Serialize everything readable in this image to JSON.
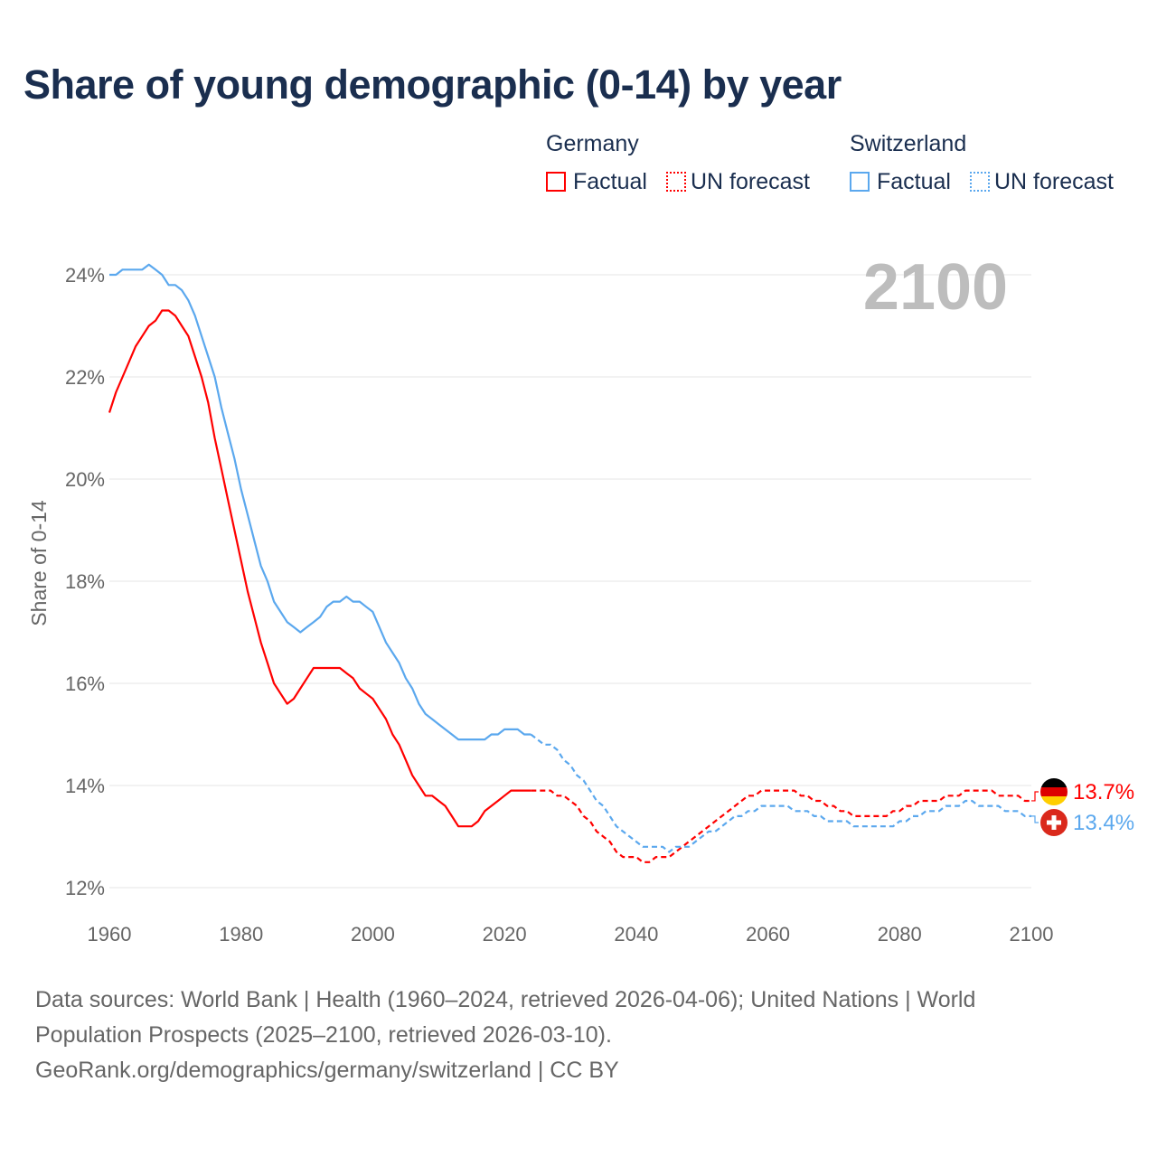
{
  "title": "Share of young demographic (0-14) by year",
  "legend": {
    "groups": [
      {
        "name": "Germany",
        "items": [
          "Factual",
          "UN forecast"
        ],
        "color": "#ff0000"
      },
      {
        "name": "Switzerland",
        "items": [
          "Factual",
          "UN forecast"
        ],
        "color": "#5ba8ee"
      }
    ]
  },
  "footer": {
    "line1": "Data sources: World Bank | Health (1960–2024, retrieved 2026-04-06); United Nations | World Population Prospects (2025–2100, retrieved 2026-03-10).",
    "line2": "GeoRank.org/demographics/germany/switzerland | CC BY"
  },
  "chart_data": {
    "type": "line",
    "title": "Share of young demographic (0-14) by year",
    "year_label": "2100",
    "xlabel": "",
    "ylabel": "Share of 0-14",
    "xlim": [
      1960,
      2100
    ],
    "ylim": [
      12,
      24
    ],
    "x_ticks": [
      "1960",
      "1980",
      "2000",
      "2020",
      "2040",
      "2060",
      "2080",
      "2100"
    ],
    "y_ticks": [
      "12%",
      "14%",
      "16%",
      "18%",
      "20%",
      "22%",
      "24%"
    ],
    "grid": true,
    "series": [
      {
        "name": "Germany Factual",
        "color": "#ff0000",
        "style": "solid",
        "start_year": 1960,
        "values": [
          21.3,
          21.7,
          22.0,
          22.3,
          22.6,
          22.8,
          23.0,
          23.1,
          23.3,
          23.3,
          23.2,
          23.0,
          22.8,
          22.4,
          22.0,
          21.5,
          20.8,
          20.2,
          19.6,
          19.0,
          18.4,
          17.8,
          17.3,
          16.8,
          16.4,
          16.0,
          15.8,
          15.6,
          15.7,
          15.9,
          16.1,
          16.3,
          16.3,
          16.3,
          16.3,
          16.3,
          16.2,
          16.1,
          15.9,
          15.8,
          15.7,
          15.5,
          15.3,
          15.0,
          14.8,
          14.5,
          14.2,
          14.0,
          13.8,
          13.8,
          13.7,
          13.6,
          13.4,
          13.2,
          13.2,
          13.2,
          13.3,
          13.5,
          13.6,
          13.7,
          13.8,
          13.9,
          13.9,
          13.9,
          13.9
        ]
      },
      {
        "name": "Germany UN forecast",
        "color": "#ff0000",
        "style": "dashed",
        "start_year": 2024,
        "values": [
          13.9,
          13.9,
          13.9,
          13.9,
          13.8,
          13.8,
          13.7,
          13.6,
          13.4,
          13.3,
          13.1,
          13.0,
          12.9,
          12.7,
          12.6,
          12.6,
          12.6,
          12.5,
          12.5,
          12.6,
          12.6,
          12.6,
          12.7,
          12.8,
          12.9,
          13.0,
          13.1,
          13.2,
          13.3,
          13.4,
          13.5,
          13.6,
          13.7,
          13.8,
          13.8,
          13.9,
          13.9,
          13.9,
          13.9,
          13.9,
          13.9,
          13.8,
          13.8,
          13.7,
          13.7,
          13.6,
          13.6,
          13.5,
          13.5,
          13.4,
          13.4,
          13.4,
          13.4,
          13.4,
          13.4,
          13.5,
          13.5,
          13.6,
          13.6,
          13.7,
          13.7,
          13.7,
          13.7,
          13.8,
          13.8,
          13.8,
          13.9,
          13.9,
          13.9,
          13.9,
          13.9,
          13.8,
          13.8,
          13.8,
          13.8,
          13.7,
          13.7
        ]
      },
      {
        "name": "Switzerland Factual",
        "color": "#5ba8ee",
        "style": "solid",
        "start_year": 1960,
        "values": [
          24.0,
          24.0,
          24.1,
          24.1,
          24.1,
          24.1,
          24.2,
          24.1,
          24.0,
          23.8,
          23.8,
          23.7,
          23.5,
          23.2,
          22.8,
          22.4,
          22.0,
          21.4,
          20.9,
          20.4,
          19.8,
          19.3,
          18.8,
          18.3,
          18.0,
          17.6,
          17.4,
          17.2,
          17.1,
          17.0,
          17.1,
          17.2,
          17.3,
          17.5,
          17.6,
          17.6,
          17.7,
          17.6,
          17.6,
          17.5,
          17.4,
          17.1,
          16.8,
          16.6,
          16.4,
          16.1,
          15.9,
          15.6,
          15.4,
          15.3,
          15.2,
          15.1,
          15.0,
          14.9,
          14.9,
          14.9,
          14.9,
          14.9,
          15.0,
          15.0,
          15.1,
          15.1,
          15.1,
          15.0,
          15.0
        ]
      },
      {
        "name": "Switzerland UN forecast",
        "color": "#5ba8ee",
        "style": "dashed",
        "start_year": 2024,
        "values": [
          15.0,
          14.9,
          14.8,
          14.8,
          14.7,
          14.5,
          14.4,
          14.2,
          14.1,
          13.9,
          13.7,
          13.6,
          13.4,
          13.2,
          13.1,
          13.0,
          12.9,
          12.8,
          12.8,
          12.8,
          12.8,
          12.7,
          12.8,
          12.8,
          12.8,
          12.9,
          13.0,
          13.1,
          13.1,
          13.2,
          13.3,
          13.4,
          13.4,
          13.5,
          13.5,
          13.6,
          13.6,
          13.6,
          13.6,
          13.6,
          13.5,
          13.5,
          13.5,
          13.4,
          13.4,
          13.3,
          13.3,
          13.3,
          13.3,
          13.2,
          13.2,
          13.2,
          13.2,
          13.2,
          13.2,
          13.2,
          13.3,
          13.3,
          13.4,
          13.4,
          13.5,
          13.5,
          13.5,
          13.6,
          13.6,
          13.6,
          13.7,
          13.7,
          13.6,
          13.6,
          13.6,
          13.6,
          13.5,
          13.5,
          13.5,
          13.4,
          13.4
        ]
      }
    ],
    "end_labels": [
      {
        "country": "Germany",
        "label": "13.7%",
        "value": 13.7,
        "color": "#ff0000"
      },
      {
        "country": "Switzerland",
        "label": "13.4%",
        "value": 13.4,
        "color": "#5ba8ee"
      }
    ]
  }
}
